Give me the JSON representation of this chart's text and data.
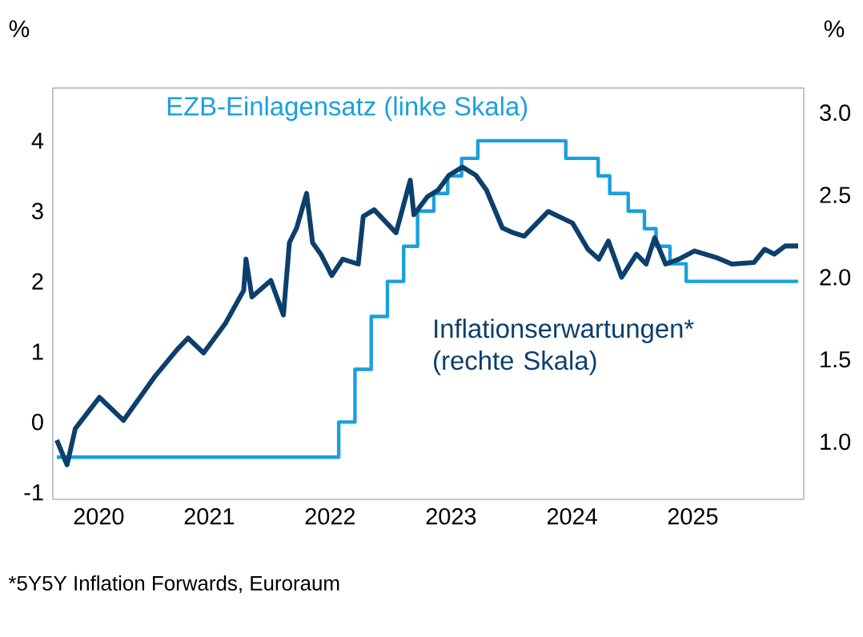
{
  "chart_data": {
    "type": "line",
    "ylabel": "%",
    "y2label": "%",
    "annotations": [
      "*5Y5Y Inflation Forwards, Euroraum"
    ],
    "xlim": [
      "2020-03-15",
      "2026-06-01"
    ],
    "xticks": [
      {
        "value": "2020-08-01",
        "label": "2020"
      },
      {
        "value": "2021-07-01",
        "label": "2021"
      },
      {
        "value": "2022-07-01",
        "label": "2022"
      },
      {
        "value": "2023-07-01",
        "label": "2023"
      },
      {
        "value": "2024-07-01",
        "label": "2024"
      },
      {
        "value": "2025-07-01",
        "label": "2025"
      }
    ],
    "ylim": [
      -1.1,
      4.75
    ],
    "yticks": [
      -1,
      0,
      1,
      2,
      3,
      4
    ],
    "y2lim": [
      0.65,
      3.15
    ],
    "y2ticks": [
      {
        "value": 1,
        "label": "1.0"
      },
      1.5,
      {
        "value": 2,
        "label": "2.0"
      },
      2.5,
      {
        "value": 3,
        "label": "3.0"
      }
    ],
    "series": [
      {
        "name": "EZB-Einlagensatz (linke Skala)",
        "type": "step",
        "color": "#1aa0dc",
        "x": [
          "2020-03-27",
          "2022-07-27",
          "2022-09-14",
          "2022-11-02",
          "2022-12-21",
          "2023-02-08",
          "2023-03-22",
          "2023-05-10",
          "2023-06-21",
          "2023-08-02",
          "2023-09-20",
          "2024-06-12",
          "2024-09-18",
          "2024-10-23",
          "2024-12-18",
          "2025-02-05",
          "2025-03-12",
          "2025-04-23",
          "2025-06-11",
          "2026-05-15"
        ],
        "values": [
          -0.5,
          0,
          0.75,
          1.5,
          2.0,
          2.5,
          3.0,
          3.25,
          3.5,
          3.75,
          4.0,
          3.75,
          3.5,
          3.25,
          3.0,
          2.75,
          2.5,
          2.25,
          2.0,
          2.0
        ]
      },
      {
        "name": "Inflationserwartungen* (rechte Skala)",
        "axis": "y2",
        "color": "#0c3f6c",
        "x": [
          "2020-03-27",
          "2020-04-27",
          "2020-05-22",
          "2020-08-03",
          "2020-10-15",
          "2021-01-19",
          "2021-03-26",
          "2021-04-28",
          "2021-06-14",
          "2021-08-19",
          "2021-10-13",
          "2021-10-20",
          "2021-11-07",
          "2022-01-03",
          "2022-02-10",
          "2022-02-28",
          "2022-03-22",
          "2022-04-21",
          "2022-05-09",
          "2022-06-03",
          "2022-07-06",
          "2022-08-08",
          "2022-09-24",
          "2022-10-09",
          "2022-11-11",
          "2023-01-16",
          "2023-02-28",
          "2023-03-11",
          "2023-04-21",
          "2023-05-23",
          "2023-06-25",
          "2023-08-04",
          "2023-09-14",
          "2023-10-16",
          "2023-12-03",
          "2024-01-05",
          "2024-02-07",
          "2024-04-20",
          "2024-07-02",
          "2024-08-18",
          "2024-09-20",
          "2024-10-19",
          "2024-11-28",
          "2025-01-12",
          "2025-02-10",
          "2025-03-08",
          "2025-04-10",
          "2025-05-20",
          "2025-07-06",
          "2025-09-10",
          "2025-10-27",
          "2026-01-02",
          "2026-02-03",
          "2026-03-04",
          "2026-04-06",
          "2026-05-15"
        ],
        "values": [
          1.01,
          0.86,
          1.08,
          1.27,
          1.13,
          1.4,
          1.56,
          1.63,
          1.54,
          1.72,
          1.92,
          2.11,
          1.88,
          1.98,
          1.77,
          2.21,
          2.3,
          2.51,
          2.21,
          2.14,
          2.01,
          2.11,
          2.08,
          2.37,
          2.41,
          2.27,
          2.59,
          2.38,
          2.49,
          2.53,
          2.62,
          2.67,
          2.62,
          2.53,
          2.3,
          2.27,
          2.25,
          2.4,
          2.33,
          2.17,
          2.11,
          2.22,
          2.0,
          2.14,
          2.08,
          2.24,
          2.08,
          2.11,
          2.16,
          2.12,
          2.08,
          2.09,
          2.17,
          2.14,
          2.19,
          2.19
        ]
      }
    ]
  }
}
